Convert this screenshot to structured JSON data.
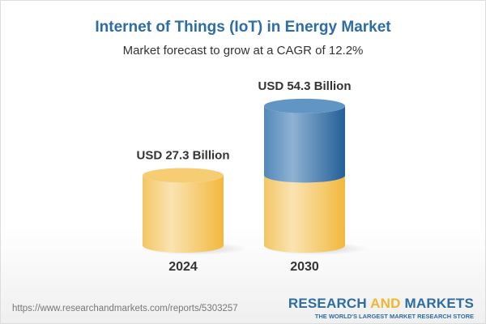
{
  "title": "Internet of Things (IoT) in Energy Market",
  "subtitle": "Market forecast to grow at a CAGR of 12.2%",
  "chart_data": {
    "type": "bar",
    "style": "3d-cylinder",
    "categories": [
      "2024",
      "2030"
    ],
    "values": [
      27.3,
      54.3
    ],
    "data_labels": [
      "USD 27.3 Billion",
      "USD 54.3 Billion"
    ],
    "unit": "USD Billion",
    "colors": {
      "base": "#f5c55a",
      "growth": "#3f7ab0"
    }
  },
  "footer": {
    "url": "https://www.researchandmarkets.com/reports/5303257",
    "logo_part1": "RESEARCH ",
    "logo_part2": "AND",
    "logo_part3": " MARKETS",
    "tagline": "THE WORLD'S LARGEST MARKET RESEARCH STORE"
  }
}
